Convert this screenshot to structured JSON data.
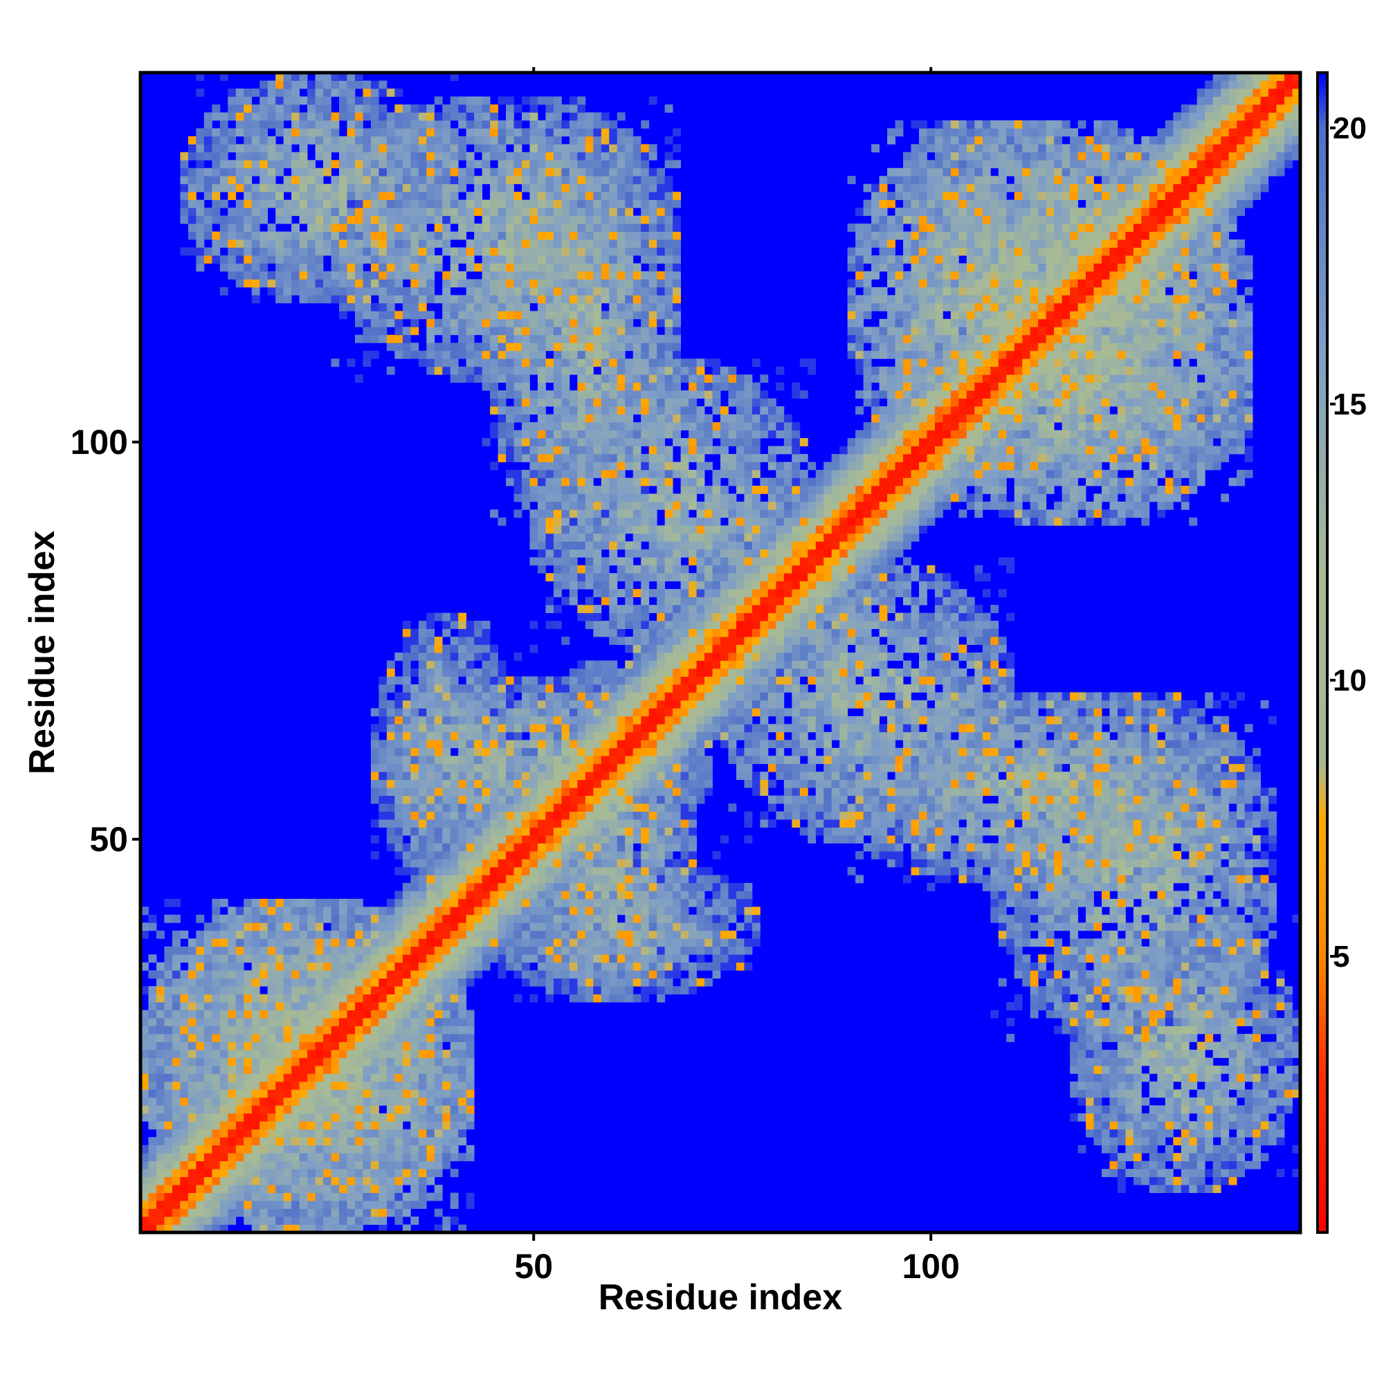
{
  "chart_data": {
    "type": "heatmap",
    "title": "",
    "xlabel": "Residue index",
    "ylabel": "Residue index",
    "n_residues": 146,
    "xlim": [
      1,
      146
    ],
    "ylim": [
      1,
      146
    ],
    "x_ticks": [
      50,
      100
    ],
    "y_ticks": [
      50,
      100
    ],
    "colorbar": {
      "ticks": [
        5,
        10,
        15,
        20
      ],
      "range": [
        0,
        21
      ],
      "stops": [
        {
          "value": 0,
          "color": "#ff0000"
        },
        {
          "value": 3,
          "color": "#ff3300"
        },
        {
          "value": 5,
          "color": "#ff8800"
        },
        {
          "value": 7.5,
          "color": "#ffaa00"
        },
        {
          "value": 8.5,
          "color": "#a8b896"
        },
        {
          "value": 12,
          "color": "#a6ba96"
        },
        {
          "value": 16,
          "color": "#7f9ec6"
        },
        {
          "value": 20,
          "color": "#4f6fc9"
        },
        {
          "value": 21,
          "color": "#0000ff"
        }
      ]
    },
    "background_value": 21,
    "background_color": "#0000ff",
    "diagonal_band_width": 10,
    "contact_blocks": [
      {
        "x": [
          1,
          42
        ],
        "y": [
          1,
          42
        ],
        "level": 12
      },
      {
        "x": [
          25,
          68
        ],
        "y": [
          108,
          143
        ],
        "level": 13
      },
      {
        "x": [
          50,
          85
        ],
        "y": [
          74,
          110
        ],
        "level": 13
      },
      {
        "x": [
          95,
          140
        ],
        "y": [
          90,
          125
        ],
        "level": 12
      },
      {
        "x": [
          30,
          72
        ],
        "y": [
          48,
          70
        ],
        "level": 13
      },
      {
        "x": [
          88,
          140
        ],
        "y": [
          44,
          68
        ],
        "level": 13
      },
      {
        "x": [
          118,
          146
        ],
        "y": [
          6,
          40
        ],
        "level": 13
      },
      {
        "x": [
          44,
          78
        ],
        "y": [
          30,
          48
        ],
        "level": 14
      },
      {
        "x": [
          98,
          136
        ],
        "y": [
          106,
          140
        ],
        "level": 12
      }
    ]
  }
}
